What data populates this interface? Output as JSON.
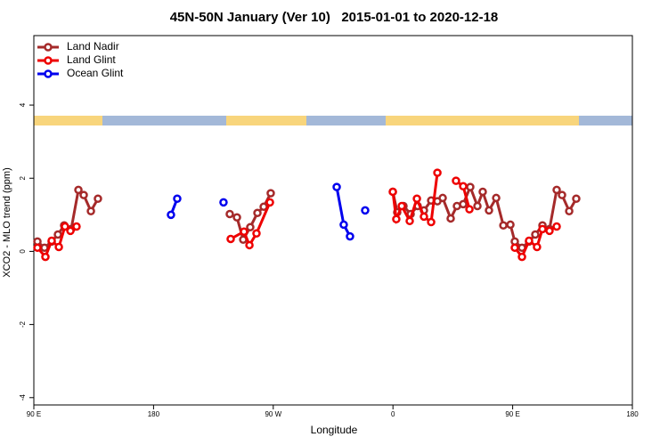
{
  "chart_data": {
    "type": "line",
    "title": "45N-50N January (Ver 10)   2015-01-01 to 2020-12-18",
    "x_label": "Longitude",
    "y_label": "XCO2 - MLO trend (ppm)",
    "xlim": [
      90,
      540
    ],
    "ylim": [
      -4.2,
      5.9
    ],
    "xticks": [
      {
        "value": 90,
        "label": "90 E"
      },
      180,
      {
        "value": 270,
        "label": "90 W"
      },
      {
        "value": 360,
        "label": "0"
      },
      {
        "value": 450,
        "label": "90 E"
      },
      {
        "value": 540,
        "label": "180"
      }
    ],
    "yticks": [
      4,
      2,
      0,
      -2,
      -4
    ],
    "legend": "top-left",
    "series": [
      {
        "name": "Land Nadir",
        "color": "#a52a2a",
        "x": [
          92.7,
          98.0,
          103.4,
          108.1,
          112.8,
          118.1,
          123.5,
          127.5,
          132.9,
          138.2,
          null,
          237.3,
          242.7,
          247.4,
          252.7,
          258.1,
          262.8,
          268.1,
          null,
          359.9,
          363.2,
          367.9,
          373.3,
          378.6,
          383.3,
          388.7,
          393.4,
          397.4,
          403.4,
          408.1,
          412.8,
          418.1,
          423.5,
          427.5,
          432.2,
          437.6,
          443.0,
          448.3,
          451.6,
          457.0,
          462.3,
          467.0,
          472.4,
          477.7,
          483.1,
          487.1,
          492.5,
          497.8
        ],
        "values": [
          0.27,
          0.1,
          0.27,
          0.46,
          0.71,
          0.61,
          1.68,
          1.54,
          1.1,
          1.44,
          null,
          1.02,
          0.93,
          0.32,
          0.66,
          1.05,
          1.22,
          1.59,
          null,
          1.63,
          1.07,
          1.24,
          1.02,
          1.24,
          1.12,
          1.39,
          1.37,
          1.46,
          0.9,
          1.24,
          1.29,
          1.76,
          1.24,
          1.63,
          1.12,
          1.46,
          0.71,
          0.73,
          0.27,
          0.1,
          0.27,
          0.46,
          0.71,
          0.61,
          1.68,
          1.54,
          1.1,
          1.44
        ]
      },
      {
        "name": "Land Glint",
        "color": "#ee0000",
        "x": [
          92.7,
          98.7,
          103.4,
          108.8,
          113.4,
          117.5,
          122.1,
          null,
          238.0,
          248.0,
          252.1,
          257.4,
          267.5,
          null,
          359.9,
          362.5,
          366.6,
          372.6,
          378.0,
          383.3,
          388.7,
          393.4,
          null,
          407.4,
          412.8,
          417.5,
          null,
          451.6,
          457.0,
          462.3,
          468.3,
          472.4,
          477.7,
          483.1
        ],
        "values": [
          0.1,
          -0.15,
          0.29,
          0.12,
          0.68,
          0.56,
          0.68,
          null,
          0.34,
          0.54,
          0.17,
          0.49,
          1.34,
          null,
          1.63,
          0.88,
          1.24,
          0.83,
          1.44,
          0.95,
          0.8,
          2.15,
          null,
          1.93,
          1.78,
          1.15,
          null,
          0.1,
          -0.15,
          0.29,
          0.12,
          0.61,
          0.56,
          0.68
        ]
      },
      {
        "name": "Ocean Glint",
        "color": "#0000ee",
        "x": [
          193.1,
          197.8,
          null,
          232.6,
          null,
          317.7,
          323.0,
          327.7,
          null,
          339.1
        ],
        "values": [
          1.0,
          1.44,
          null,
          1.34,
          null,
          1.76,
          0.73,
          0.41,
          null,
          1.12
        ]
      }
    ]
  }
}
